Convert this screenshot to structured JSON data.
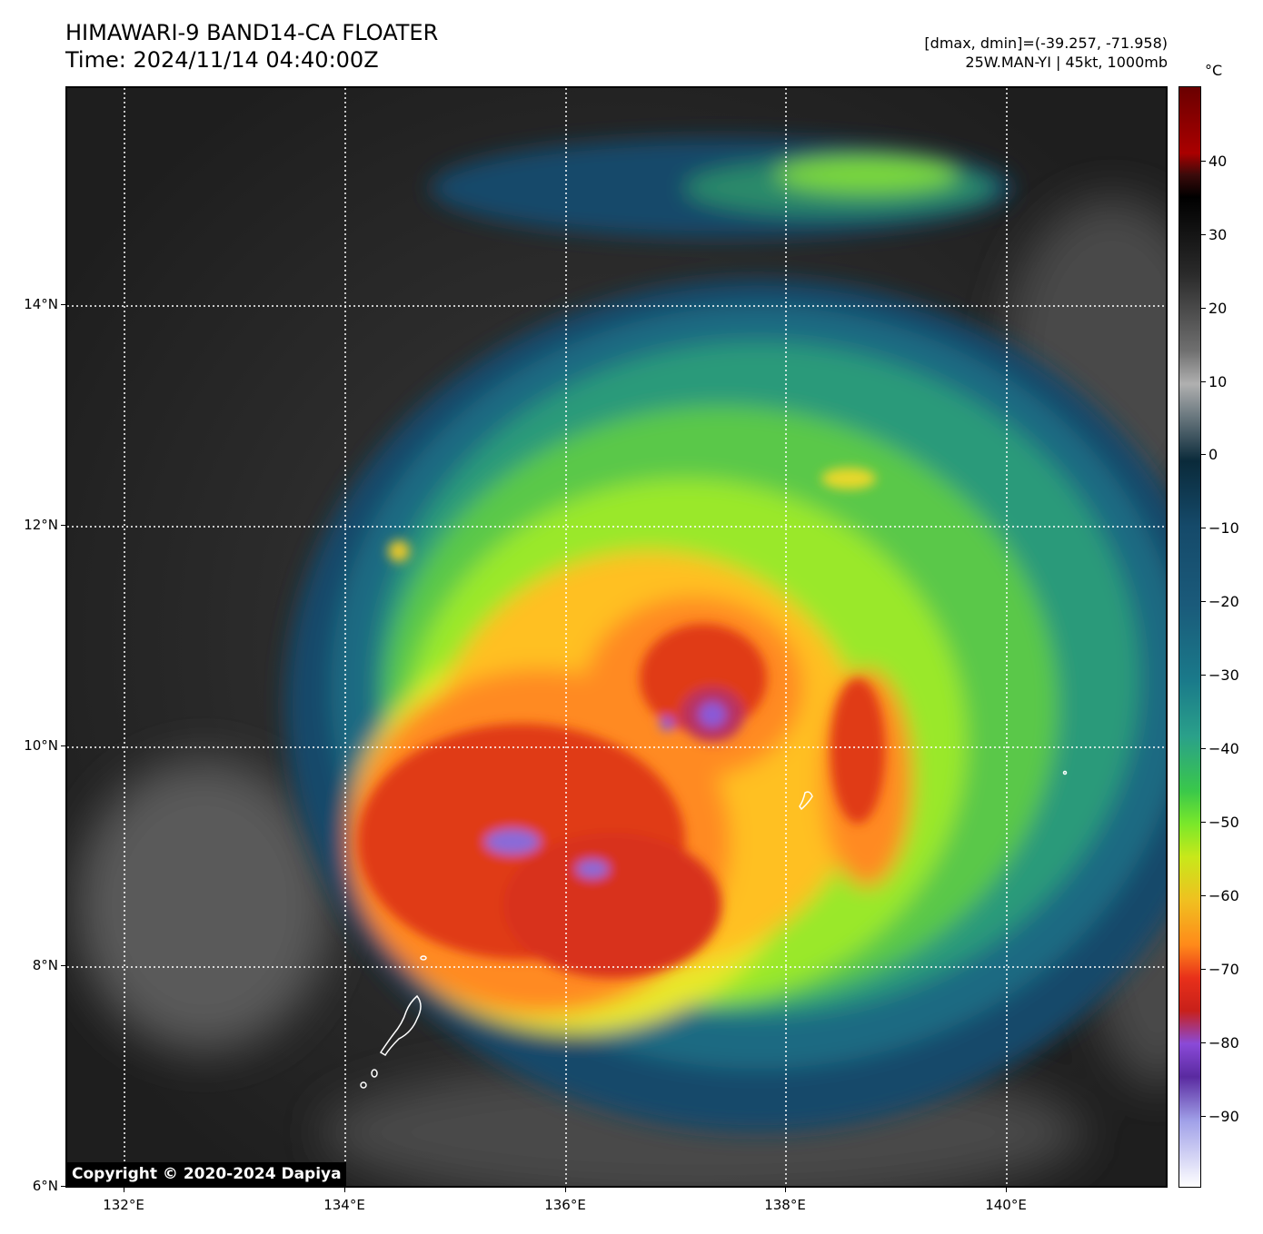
{
  "header": {
    "title_line1": "HIMAWARI-9 BAND14-CA FLOATER",
    "title_line2": "Time: 2024/11/14 04:40:00Z",
    "dmax_dmin": "[dmax, dmin]=(-39.257, -71.958)",
    "storm_info": "25W.MAN-YI | 45kt, 1000mb"
  },
  "map": {
    "lat_labels": [
      "14°N",
      "12°N",
      "10°N",
      "8°N",
      "6°N"
    ],
    "lon_labels": [
      "132°E",
      "134°E",
      "136°E",
      "138°E",
      "140°E"
    ],
    "gridlines": true
  },
  "colorbar": {
    "unit": "°C",
    "tick_labels": [
      "40",
      "30",
      "20",
      "10",
      "0",
      "−10",
      "−20",
      "−30",
      "−40",
      "−50",
      "−60",
      "−70",
      "−80",
      "−90"
    ]
  },
  "copyright": "Copyright © 2020-2024 Dapiya"
}
